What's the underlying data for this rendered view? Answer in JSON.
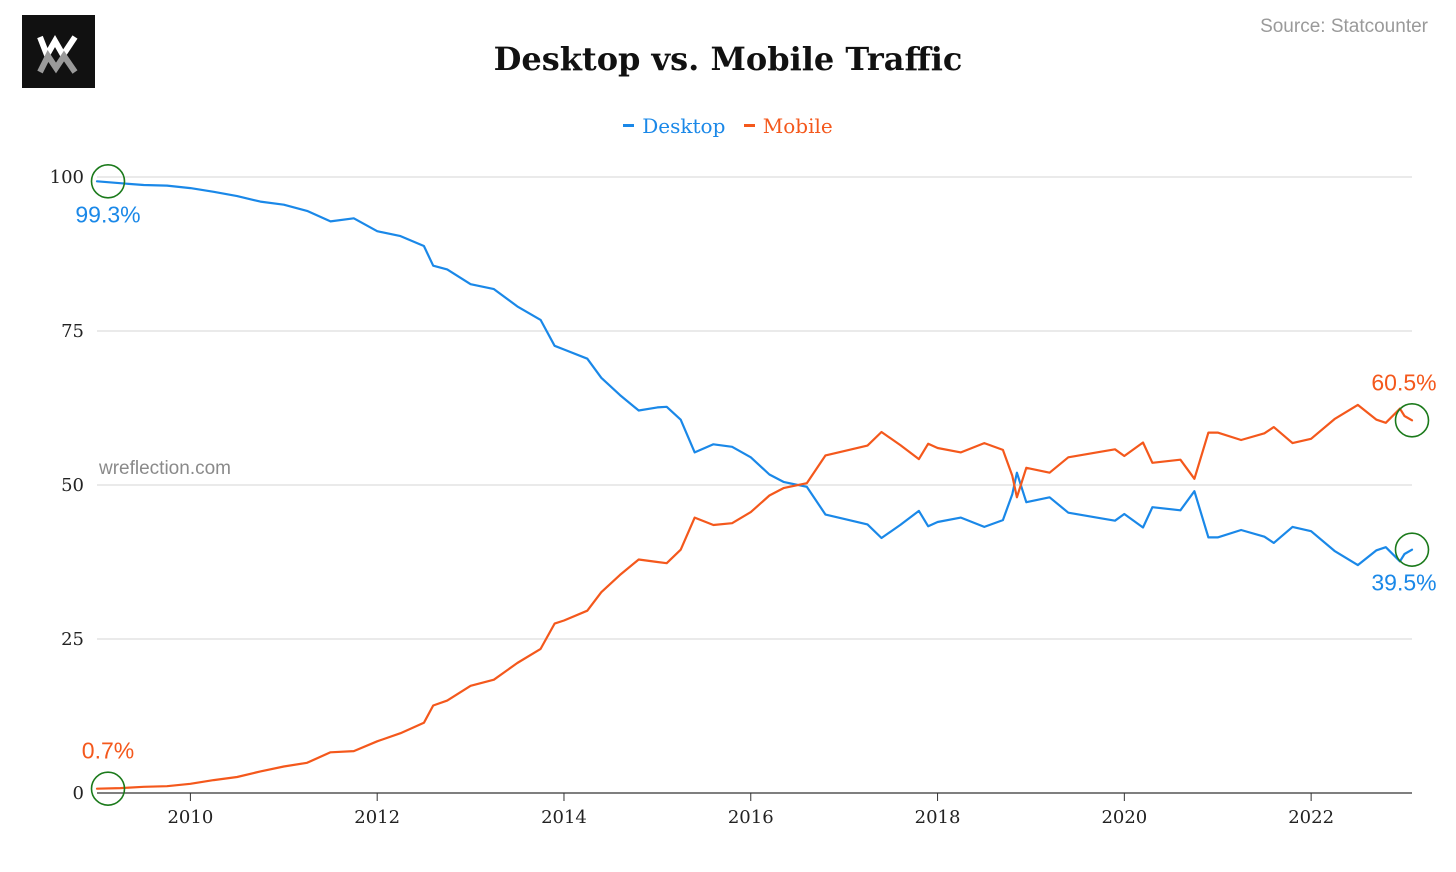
{
  "header": {
    "logo_text": "WM",
    "source": "Source: Statcounter",
    "watermark": "wreflection.com"
  },
  "colors": {
    "desktop": "#1a88e8",
    "mobile": "#f4581c",
    "grid": "#d4d4d4",
    "marker": "#1b7a1b",
    "axis": "#333333"
  },
  "chart_data": {
    "type": "line",
    "title": "Desktop vs. Mobile Traffic",
    "xlabel": "",
    "ylabel": "",
    "ylim": [
      0,
      100
    ],
    "xlim": [
      2009.0,
      2023.08
    ],
    "y_ticks": [
      0,
      25,
      50,
      75,
      100
    ],
    "x_ticks": [
      2010,
      2012,
      2014,
      2016,
      2018,
      2020,
      2022
    ],
    "grid": true,
    "legend_position": "top-center",
    "series": [
      {
        "name": "Desktop",
        "color": "#1a88e8",
        "points": [
          [
            2009.0,
            99.3
          ],
          [
            2009.25,
            99.0
          ],
          [
            2009.5,
            98.7
          ],
          [
            2009.75,
            98.6
          ],
          [
            2010.0,
            98.2
          ],
          [
            2010.25,
            97.6
          ],
          [
            2010.5,
            96.9
          ],
          [
            2010.75,
            96.0
          ],
          [
            2011.0,
            95.5
          ],
          [
            2011.25,
            94.5
          ],
          [
            2011.5,
            92.8
          ],
          [
            2011.75,
            93.3
          ],
          [
            2012.0,
            91.2
          ],
          [
            2012.25,
            90.4
          ],
          [
            2012.5,
            88.8
          ],
          [
            2012.6,
            85.6
          ],
          [
            2012.75,
            85.0
          ],
          [
            2013.0,
            82.6
          ],
          [
            2013.25,
            81.8
          ],
          [
            2013.5,
            79.0
          ],
          [
            2013.75,
            76.8
          ],
          [
            2013.9,
            72.6
          ],
          [
            2014.0,
            72.0
          ],
          [
            2014.25,
            70.5
          ],
          [
            2014.4,
            67.4
          ],
          [
            2014.6,
            64.6
          ],
          [
            2014.8,
            62.1
          ],
          [
            2015.0,
            62.6
          ],
          [
            2015.1,
            62.7
          ],
          [
            2015.25,
            60.6
          ],
          [
            2015.4,
            55.3
          ],
          [
            2015.6,
            56.6
          ],
          [
            2015.8,
            56.2
          ],
          [
            2016.0,
            54.5
          ],
          [
            2016.2,
            51.7
          ],
          [
            2016.35,
            50.5
          ],
          [
            2016.6,
            49.7
          ],
          [
            2016.8,
            45.2
          ],
          [
            2017.0,
            44.5
          ],
          [
            2017.25,
            43.6
          ],
          [
            2017.4,
            41.4
          ],
          [
            2017.6,
            43.5
          ],
          [
            2017.8,
            45.8
          ],
          [
            2017.9,
            43.3
          ],
          [
            2018.0,
            44.0
          ],
          [
            2018.25,
            44.7
          ],
          [
            2018.5,
            43.2
          ],
          [
            2018.7,
            44.3
          ],
          [
            2018.8,
            48.5
          ],
          [
            2018.85,
            52.0
          ],
          [
            2018.95,
            47.2
          ],
          [
            2019.2,
            48.0
          ],
          [
            2019.4,
            45.5
          ],
          [
            2019.75,
            44.6
          ],
          [
            2019.9,
            44.2
          ],
          [
            2020.0,
            45.3
          ],
          [
            2020.2,
            43.1
          ],
          [
            2020.3,
            46.4
          ],
          [
            2020.6,
            45.9
          ],
          [
            2020.75,
            49.0
          ],
          [
            2020.9,
            41.5
          ],
          [
            2021.0,
            41.5
          ],
          [
            2021.25,
            42.7
          ],
          [
            2021.5,
            41.6
          ],
          [
            2021.6,
            40.6
          ],
          [
            2021.8,
            43.2
          ],
          [
            2022.0,
            42.5
          ],
          [
            2022.25,
            39.3
          ],
          [
            2022.5,
            37.0
          ],
          [
            2022.7,
            39.4
          ],
          [
            2022.8,
            39.9
          ],
          [
            2022.95,
            37.6
          ],
          [
            2023.0,
            38.8
          ],
          [
            2023.08,
            39.5
          ]
        ]
      },
      {
        "name": "Mobile",
        "color": "#f4581c",
        "points": [
          [
            2009.0,
            0.7
          ],
          [
            2009.25,
            0.8
          ],
          [
            2009.5,
            1.0
          ],
          [
            2009.75,
            1.1
          ],
          [
            2010.0,
            1.5
          ],
          [
            2010.25,
            2.1
          ],
          [
            2010.5,
            2.6
          ],
          [
            2010.75,
            3.5
          ],
          [
            2011.0,
            4.3
          ],
          [
            2011.25,
            4.9
          ],
          [
            2011.5,
            6.6
          ],
          [
            2011.75,
            6.8
          ],
          [
            2012.0,
            8.4
          ],
          [
            2012.25,
            9.7
          ],
          [
            2012.5,
            11.4
          ],
          [
            2012.6,
            14.2
          ],
          [
            2012.75,
            15.0
          ],
          [
            2013.0,
            17.4
          ],
          [
            2013.25,
            18.4
          ],
          [
            2013.5,
            21.1
          ],
          [
            2013.75,
            23.4
          ],
          [
            2013.9,
            27.5
          ],
          [
            2014.0,
            28.0
          ],
          [
            2014.25,
            29.6
          ],
          [
            2014.4,
            32.6
          ],
          [
            2014.6,
            35.4
          ],
          [
            2014.8,
            37.9
          ],
          [
            2015.0,
            37.5
          ],
          [
            2015.1,
            37.3
          ],
          [
            2015.25,
            39.5
          ],
          [
            2015.4,
            44.7
          ],
          [
            2015.6,
            43.5
          ],
          [
            2015.8,
            43.8
          ],
          [
            2016.0,
            45.6
          ],
          [
            2016.2,
            48.3
          ],
          [
            2016.35,
            49.5
          ],
          [
            2016.6,
            50.3
          ],
          [
            2016.8,
            54.8
          ],
          [
            2017.0,
            55.5
          ],
          [
            2017.25,
            56.4
          ],
          [
            2017.4,
            58.6
          ],
          [
            2017.6,
            56.5
          ],
          [
            2017.8,
            54.2
          ],
          [
            2017.9,
            56.7
          ],
          [
            2018.0,
            56.0
          ],
          [
            2018.25,
            55.3
          ],
          [
            2018.5,
            56.8
          ],
          [
            2018.7,
            55.7
          ],
          [
            2018.8,
            51.5
          ],
          [
            2018.85,
            48.0
          ],
          [
            2018.95,
            52.8
          ],
          [
            2019.2,
            52.0
          ],
          [
            2019.4,
            54.5
          ],
          [
            2019.75,
            55.4
          ],
          [
            2019.9,
            55.8
          ],
          [
            2020.0,
            54.7
          ],
          [
            2020.2,
            56.9
          ],
          [
            2020.3,
            53.6
          ],
          [
            2020.6,
            54.1
          ],
          [
            2020.75,
            51.0
          ],
          [
            2020.9,
            58.5
          ],
          [
            2021.0,
            58.5
          ],
          [
            2021.25,
            57.3
          ],
          [
            2021.5,
            58.4
          ],
          [
            2021.6,
            59.4
          ],
          [
            2021.8,
            56.8
          ],
          [
            2022.0,
            57.5
          ],
          [
            2022.25,
            60.7
          ],
          [
            2022.5,
            63.0
          ],
          [
            2022.7,
            60.6
          ],
          [
            2022.8,
            60.1
          ],
          [
            2022.95,
            62.4
          ],
          [
            2023.0,
            61.2
          ],
          [
            2023.08,
            60.5
          ]
        ]
      }
    ],
    "annotations": [
      {
        "text": "99.3%",
        "series": "Desktop",
        "x": 2009.0,
        "y": 99.3,
        "label_side": "below"
      },
      {
        "text": "0.7%",
        "series": "Mobile",
        "x": 2009.0,
        "y": 0.7,
        "label_side": "above"
      },
      {
        "text": "60.5%",
        "series": "Mobile",
        "x": 2023.08,
        "y": 60.5,
        "label_side": "above"
      },
      {
        "text": "39.5%",
        "series": "Desktop",
        "x": 2023.08,
        "y": 39.5,
        "label_side": "below"
      }
    ]
  }
}
